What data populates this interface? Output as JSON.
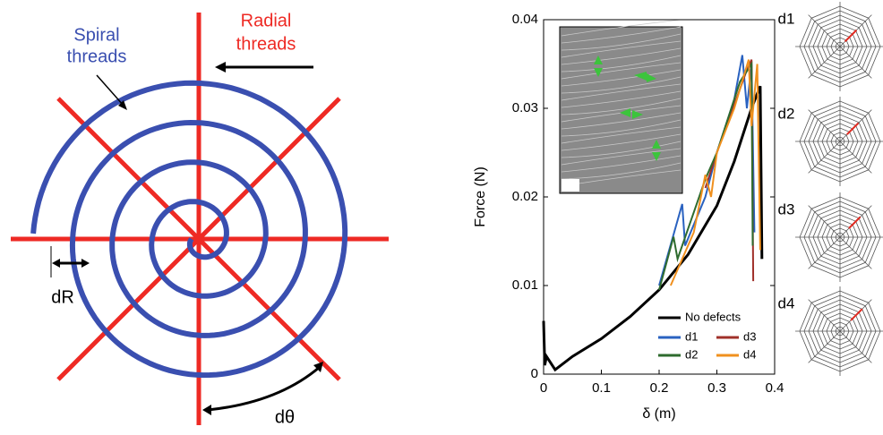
{
  "diagram": {
    "spiral_label": [
      "Spiral",
      "threads"
    ],
    "radial_label": [
      "Radial",
      "threads"
    ],
    "dr_label": "dR",
    "dtheta_label": "dθ"
  },
  "web_labels": [
    "d1",
    "d2",
    "d3",
    "d4"
  ],
  "chart_data": {
    "type": "line",
    "xlabel": "δ (m)",
    "ylabel": "Force (N)",
    "xlim": [
      0,
      0.4
    ],
    "xticks": [
      0,
      0.1,
      0.2,
      0.3,
      0.4
    ],
    "ylim": [
      0,
      0.04
    ],
    "yticks": [
      0,
      0.01,
      0.02,
      0.03,
      0.04
    ],
    "legend": "lower right",
    "series": [
      {
        "name": "No defects",
        "color": "#000000",
        "x": [
          0,
          0.002,
          0.005,
          0.02,
          0.05,
          0.1,
          0.15,
          0.2,
          0.25,
          0.3,
          0.33,
          0.36,
          0.375,
          0.378
        ],
        "values": [
          0.006,
          0.001,
          0.002,
          0.0005,
          0.002,
          0.004,
          0.0065,
          0.0095,
          0.0135,
          0.019,
          0.024,
          0.03,
          0.0325,
          0.013
        ]
      },
      {
        "name": "d1",
        "color": "#2a62c0",
        "x": [
          0.2,
          0.24,
          0.245,
          0.28,
          0.3,
          0.33,
          0.344,
          0.352,
          0.36,
          0.365
        ],
        "values": [
          0.01,
          0.0192,
          0.0145,
          0.02,
          0.025,
          0.031,
          0.036,
          0.03,
          0.035,
          0.016
        ]
      },
      {
        "name": "d3",
        "color": "#a0302a",
        "x": [
          0.28,
          0.3,
          0.35,
          0.36,
          0.363
        ],
        "values": [
          0.021,
          0.025,
          0.034,
          0.0355,
          0.0105
        ]
      },
      {
        "name": "d2",
        "color": "#2e6b2e",
        "x": [
          0.2,
          0.225,
          0.232,
          0.28,
          0.3,
          0.34,
          0.36,
          0.362
        ],
        "values": [
          0.0095,
          0.0155,
          0.013,
          0.022,
          0.025,
          0.033,
          0.035,
          0.0145
        ]
      },
      {
        "name": "d4",
        "color": "#f0901e",
        "x": [
          0.22,
          0.26,
          0.28,
          0.29,
          0.3,
          0.33,
          0.355,
          0.36,
          0.37,
          0.375
        ],
        "values": [
          0.01,
          0.016,
          0.0225,
          0.02,
          0.025,
          0.03,
          0.0355,
          0.028,
          0.035,
          0.014
        ]
      }
    ]
  }
}
